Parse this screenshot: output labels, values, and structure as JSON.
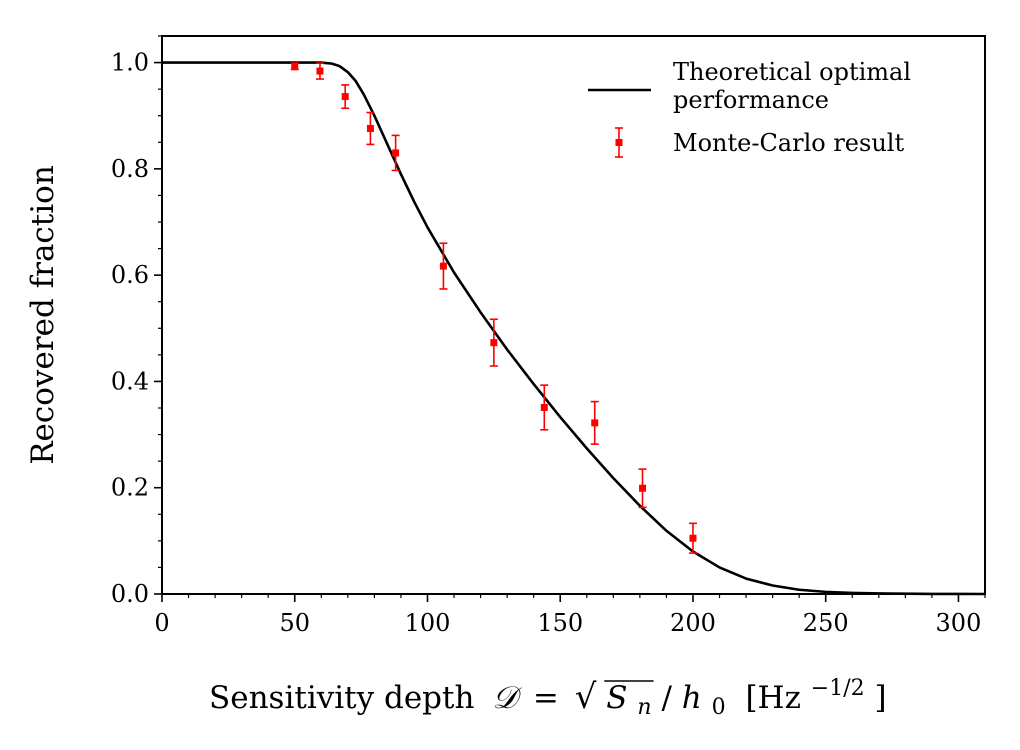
{
  "chart_data": {
    "type": "line",
    "xlabel": "Sensitivity depth",
    "xlabel_math": {
      "symbol": "𝒟",
      "equals": "=",
      "sqrt_of": "S",
      "sqrt_sub": "n",
      "divide": "/",
      "denom": "h",
      "denom_sub": "0",
      "unit_open": "[Hz",
      "unit_exp": "−1/2",
      "unit_close": "]"
    },
    "ylabel": "Recovered fraction",
    "xlim": [
      0,
      310
    ],
    "ylim": [
      0,
      1.05
    ],
    "xticks": [
      0,
      50,
      100,
      150,
      200,
      250,
      300
    ],
    "xtick_labels": [
      "0",
      "50",
      "100",
      "150",
      "200",
      "250",
      "300"
    ],
    "yticks": [
      0,
      0.2,
      0.4,
      0.6,
      0.8,
      1.0
    ],
    "ytick_labels": [
      "0.0",
      "0.2",
      "0.4",
      "0.6",
      "0.8",
      "1.0"
    ],
    "grid": false,
    "legend_position": "top-right",
    "series": [
      {
        "name": "Theoretical optimal performance",
        "legend_lines": [
          "Theoretical optimal",
          "performance"
        ],
        "style": "line",
        "color": "#000000",
        "x": [
          0,
          50,
          60,
          64,
          67,
          70,
          73,
          76,
          80,
          85,
          90,
          95,
          100,
          110,
          120,
          130,
          140,
          150,
          160,
          170,
          180,
          190,
          200,
          210,
          220,
          230,
          240,
          250,
          260,
          270,
          280,
          290,
          300,
          310
        ],
        "y": [
          1.0,
          1.0,
          1.0,
          0.998,
          0.993,
          0.982,
          0.965,
          0.94,
          0.9,
          0.845,
          0.79,
          0.738,
          0.69,
          0.605,
          0.53,
          0.46,
          0.395,
          0.333,
          0.274,
          0.218,
          0.166,
          0.119,
          0.08,
          0.05,
          0.029,
          0.016,
          0.008,
          0.004,
          0.002,
          0.001,
          0.0005,
          0.0002,
          0.0001,
          0.0
        ]
      },
      {
        "name": "Monte-Carlo result",
        "style": "errorbar",
        "color": "#ff0000",
        "x": [
          50,
          59.5,
          69,
          78.5,
          88,
          106,
          125,
          144,
          163,
          181,
          200
        ],
        "y": [
          0.993,
          0.984,
          0.936,
          0.876,
          0.83,
          0.617,
          0.473,
          0.351,
          0.322,
          0.199,
          0.105
        ],
        "err": [
          0.006,
          0.015,
          0.022,
          0.03,
          0.033,
          0.043,
          0.044,
          0.042,
          0.04,
          0.036,
          0.028
        ]
      }
    ]
  }
}
